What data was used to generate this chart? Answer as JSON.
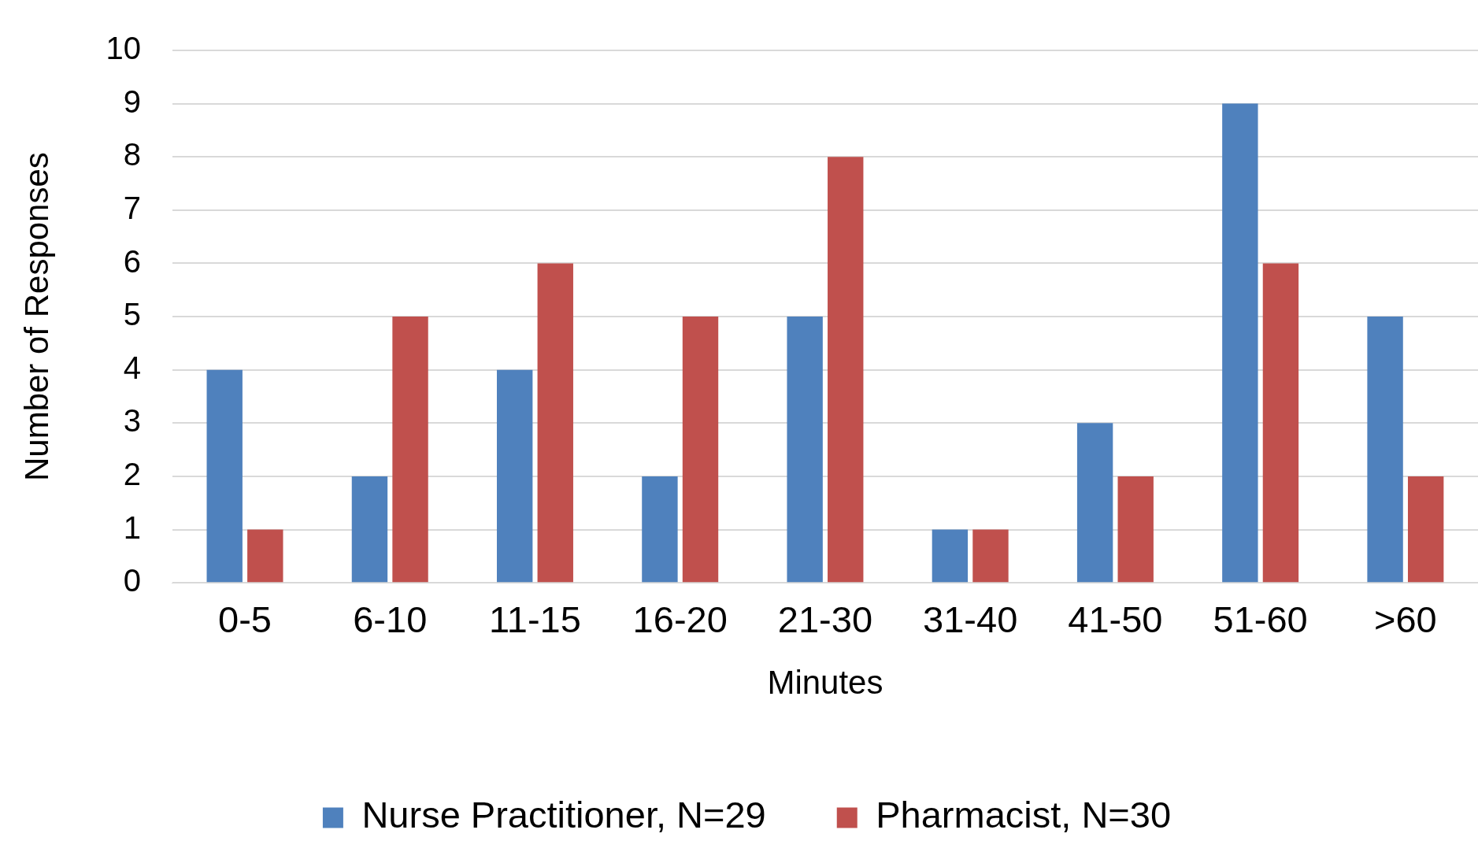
{
  "chart_data": {
    "type": "bar",
    "xlabel": "Minutes",
    "ylabel": "Number of Responses",
    "categories": [
      "0-5",
      "6-10",
      "11-15",
      "16-20",
      "21-30",
      "31-40",
      "41-50",
      "51-60",
      ">60"
    ],
    "series": [
      {
        "name": "Nurse Practitioner, N=29",
        "color": "#4f81bd",
        "values": [
          4,
          2,
          4,
          2,
          5,
          1,
          3,
          9,
          5
        ]
      },
      {
        "name": "Pharmacist, N=30",
        "color": "#c0504d",
        "values": [
          1,
          5,
          6,
          5,
          8,
          1,
          2,
          6,
          2
        ]
      }
    ],
    "ylim": [
      0,
      10
    ],
    "yticks": [
      0,
      1,
      2,
      3,
      4,
      5,
      6,
      7,
      8,
      9,
      10
    ],
    "grid": "y",
    "legend": "bottom"
  }
}
